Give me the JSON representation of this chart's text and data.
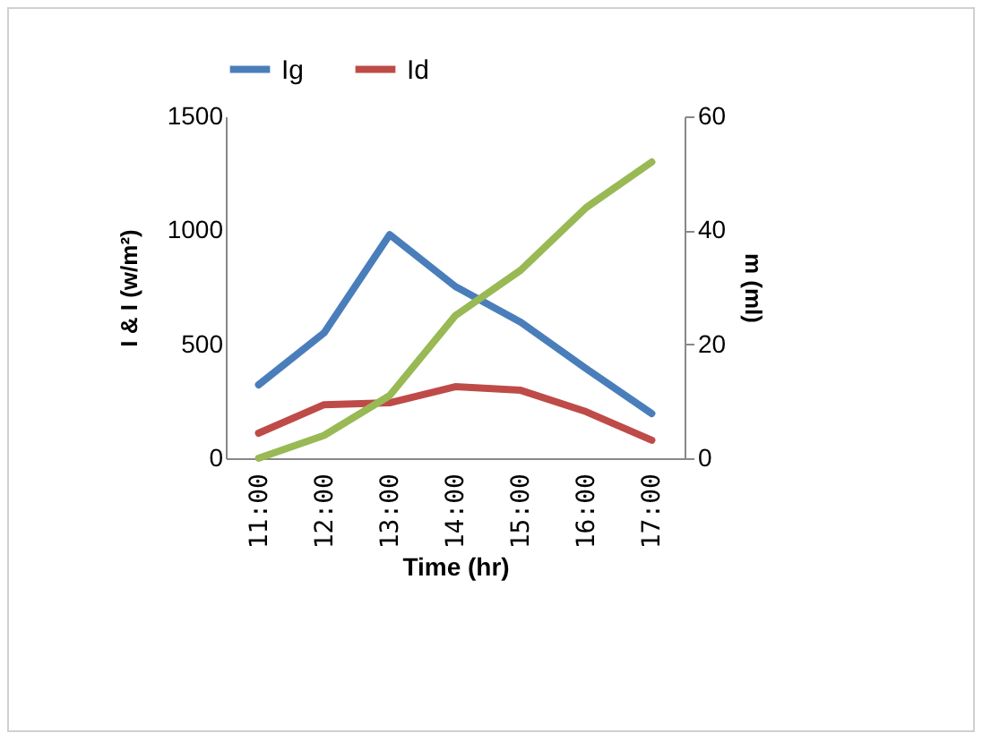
{
  "chart_data": {
    "type": "line",
    "xlabel": "Time (hr)",
    "ylabel": "I & I (w/m²)",
    "y2label": "m (ml)",
    "categories": [
      "11:00",
      "12:00",
      "13:00",
      "14:00",
      "15:00",
      "16:00",
      "17:00"
    ],
    "series": [
      {
        "name": "Ig",
        "color": "#4a7ebb",
        "values": [
          322,
          550,
          981,
          754,
          597,
          393,
          196
        ]
      },
      {
        "name": "Id",
        "color": "#be4b48",
        "values": [
          110,
          235,
          243,
          314,
          298,
          204,
          79
        ]
      },
      {
        "color": "#98b954",
        "axis": "y2",
        "values": [
          0,
          4,
          11,
          25,
          33,
          44,
          52
        ]
      }
    ],
    "ylim": [
      0,
      1500
    ],
    "yticks": [
      0,
      500,
      1000,
      1500
    ],
    "y2lim": [
      0,
      60
    ],
    "y2ticks": [
      0,
      20,
      40,
      60
    ],
    "grid": false,
    "legend": "top",
    "marker": "none",
    "line_style": "solid"
  }
}
